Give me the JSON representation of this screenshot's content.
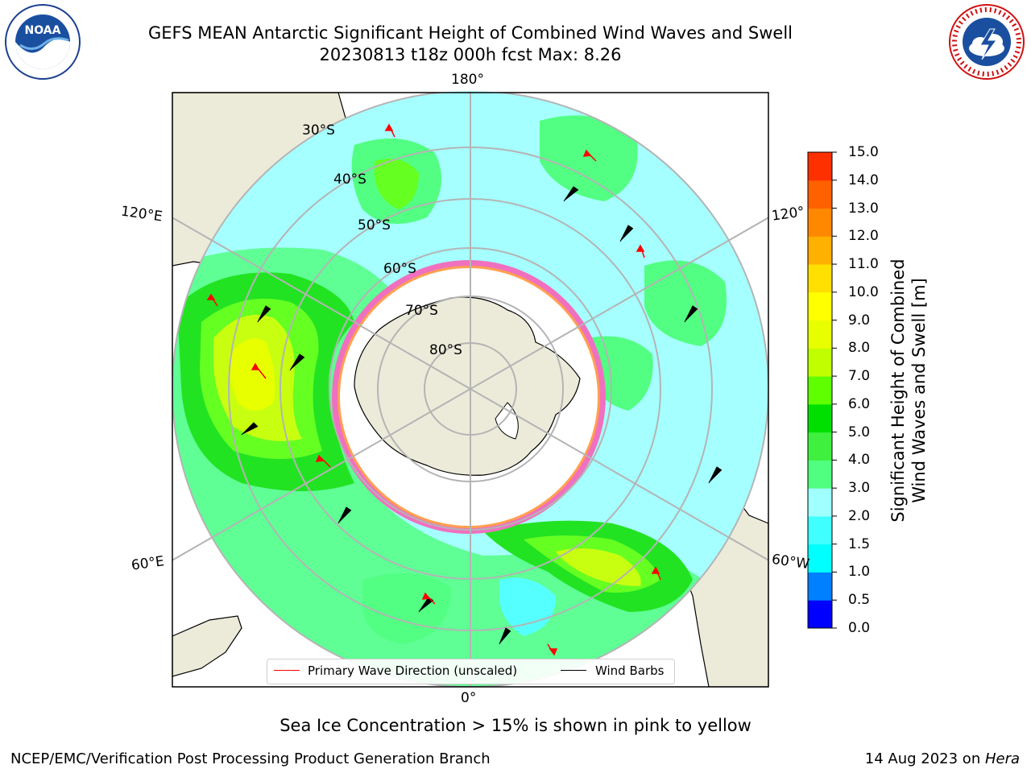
{
  "header": {
    "title_line1": "GEFS MEAN Antarctic Significant Height of Combined Wind Waves and Swell",
    "title_line2": "20230813 t18z 000h fcst   Max: 8.26"
  },
  "logos": {
    "left": "NOAA",
    "right": "NATIONAL WEATHER SERVICE"
  },
  "map": {
    "projection": "south-polar-stereographic",
    "lon_labels": {
      "top": "180°",
      "bottom": "0°",
      "upper_left": "120°E",
      "upper_right": "120°",
      "lower_left": "60°E",
      "lower_right": "60°W"
    },
    "lat_labels": [
      "30°S",
      "40°S",
      "50°S",
      "60°S",
      "70°S",
      "80°S"
    ]
  },
  "legend": {
    "wave_label": "Primary Wave Direction (unscaled)",
    "wind_label": "Wind Barbs",
    "wave_color": "#ff0000",
    "wind_color": "#000000"
  },
  "colorbar": {
    "label_line1": "Significant Height of Combined",
    "label_line2": "Wind Waves and Swell [m]",
    "ticks": [
      "15.0",
      "14.0",
      "13.0",
      "12.0",
      "11.0",
      "10.0",
      "9.0",
      "8.0",
      "7.0",
      "6.0",
      "5.0",
      "4.0",
      "3.0",
      "2.0",
      "1.5",
      "1.0",
      "0.5",
      "0.0"
    ],
    "colors": [
      "#0000ff",
      "#0080ff",
      "#00ffff",
      "#40ffff",
      "#a0ffff",
      "#50ff80",
      "#40f040",
      "#00e000",
      "#60ff00",
      "#c0ff00",
      "#e8ff00",
      "#ffff00",
      "#ffe000",
      "#ffb000",
      "#ff8800",
      "#ff6000",
      "#ff3000",
      "#ff0000"
    ]
  },
  "chart_data": {
    "type": "heatmap",
    "variable": "Significant Height of Combined Wind Waves and Swell",
    "units": "m",
    "max": 8.26,
    "valid": "20230813 t18z 000h fcst",
    "levels": [
      0.0,
      0.5,
      1.0,
      1.5,
      2.0,
      3.0,
      4.0,
      5.0,
      6.0,
      7.0,
      8.0,
      9.0,
      10.0,
      11.0,
      12.0,
      13.0,
      14.0,
      15.0
    ]
  },
  "footer": {
    "ice_note": "Sea Ice Concentration > 15% is shown in pink to yellow",
    "branch": "NCEP/EMC/Verification Post Processing Product Generation Branch",
    "date": "14 Aug 2023 on ",
    "machine": "Hera"
  }
}
